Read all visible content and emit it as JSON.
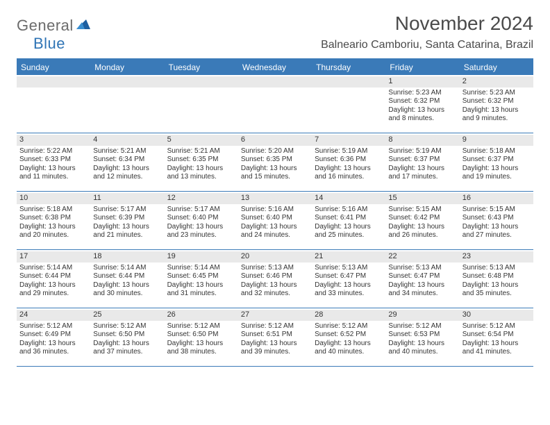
{
  "logo": {
    "text1": "General",
    "text2": "Blue"
  },
  "title": "November 2024",
  "location": "Balneario Camboriu, Santa Catarina, Brazil",
  "colors": {
    "header_bg": "#3a7ab8",
    "header_text": "#ffffff",
    "daynum_bg": "#e9e9e9",
    "text": "#333333",
    "logo_gray": "#6b6b6b",
    "logo_blue": "#2f74b5"
  },
  "weekdays": [
    "Sunday",
    "Monday",
    "Tuesday",
    "Wednesday",
    "Thursday",
    "Friday",
    "Saturday"
  ],
  "leading_blanks": 5,
  "days": [
    {
      "n": "1",
      "sunrise": "Sunrise: 5:23 AM",
      "sunset": "Sunset: 6:32 PM",
      "daylight": "Daylight: 13 hours and 8 minutes."
    },
    {
      "n": "2",
      "sunrise": "Sunrise: 5:23 AM",
      "sunset": "Sunset: 6:32 PM",
      "daylight": "Daylight: 13 hours and 9 minutes."
    },
    {
      "n": "3",
      "sunrise": "Sunrise: 5:22 AM",
      "sunset": "Sunset: 6:33 PM",
      "daylight": "Daylight: 13 hours and 11 minutes."
    },
    {
      "n": "4",
      "sunrise": "Sunrise: 5:21 AM",
      "sunset": "Sunset: 6:34 PM",
      "daylight": "Daylight: 13 hours and 12 minutes."
    },
    {
      "n": "5",
      "sunrise": "Sunrise: 5:21 AM",
      "sunset": "Sunset: 6:35 PM",
      "daylight": "Daylight: 13 hours and 13 minutes."
    },
    {
      "n": "6",
      "sunrise": "Sunrise: 5:20 AM",
      "sunset": "Sunset: 6:35 PM",
      "daylight": "Daylight: 13 hours and 15 minutes."
    },
    {
      "n": "7",
      "sunrise": "Sunrise: 5:19 AM",
      "sunset": "Sunset: 6:36 PM",
      "daylight": "Daylight: 13 hours and 16 minutes."
    },
    {
      "n": "8",
      "sunrise": "Sunrise: 5:19 AM",
      "sunset": "Sunset: 6:37 PM",
      "daylight": "Daylight: 13 hours and 17 minutes."
    },
    {
      "n": "9",
      "sunrise": "Sunrise: 5:18 AM",
      "sunset": "Sunset: 6:37 PM",
      "daylight": "Daylight: 13 hours and 19 minutes."
    },
    {
      "n": "10",
      "sunrise": "Sunrise: 5:18 AM",
      "sunset": "Sunset: 6:38 PM",
      "daylight": "Daylight: 13 hours and 20 minutes."
    },
    {
      "n": "11",
      "sunrise": "Sunrise: 5:17 AM",
      "sunset": "Sunset: 6:39 PM",
      "daylight": "Daylight: 13 hours and 21 minutes."
    },
    {
      "n": "12",
      "sunrise": "Sunrise: 5:17 AM",
      "sunset": "Sunset: 6:40 PM",
      "daylight": "Daylight: 13 hours and 23 minutes."
    },
    {
      "n": "13",
      "sunrise": "Sunrise: 5:16 AM",
      "sunset": "Sunset: 6:40 PM",
      "daylight": "Daylight: 13 hours and 24 minutes."
    },
    {
      "n": "14",
      "sunrise": "Sunrise: 5:16 AM",
      "sunset": "Sunset: 6:41 PM",
      "daylight": "Daylight: 13 hours and 25 minutes."
    },
    {
      "n": "15",
      "sunrise": "Sunrise: 5:15 AM",
      "sunset": "Sunset: 6:42 PM",
      "daylight": "Daylight: 13 hours and 26 minutes."
    },
    {
      "n": "16",
      "sunrise": "Sunrise: 5:15 AM",
      "sunset": "Sunset: 6:43 PM",
      "daylight": "Daylight: 13 hours and 27 minutes."
    },
    {
      "n": "17",
      "sunrise": "Sunrise: 5:14 AM",
      "sunset": "Sunset: 6:44 PM",
      "daylight": "Daylight: 13 hours and 29 minutes."
    },
    {
      "n": "18",
      "sunrise": "Sunrise: 5:14 AM",
      "sunset": "Sunset: 6:44 PM",
      "daylight": "Daylight: 13 hours and 30 minutes."
    },
    {
      "n": "19",
      "sunrise": "Sunrise: 5:14 AM",
      "sunset": "Sunset: 6:45 PM",
      "daylight": "Daylight: 13 hours and 31 minutes."
    },
    {
      "n": "20",
      "sunrise": "Sunrise: 5:13 AM",
      "sunset": "Sunset: 6:46 PM",
      "daylight": "Daylight: 13 hours and 32 minutes."
    },
    {
      "n": "21",
      "sunrise": "Sunrise: 5:13 AM",
      "sunset": "Sunset: 6:47 PM",
      "daylight": "Daylight: 13 hours and 33 minutes."
    },
    {
      "n": "22",
      "sunrise": "Sunrise: 5:13 AM",
      "sunset": "Sunset: 6:47 PM",
      "daylight": "Daylight: 13 hours and 34 minutes."
    },
    {
      "n": "23",
      "sunrise": "Sunrise: 5:13 AM",
      "sunset": "Sunset: 6:48 PM",
      "daylight": "Daylight: 13 hours and 35 minutes."
    },
    {
      "n": "24",
      "sunrise": "Sunrise: 5:12 AM",
      "sunset": "Sunset: 6:49 PM",
      "daylight": "Daylight: 13 hours and 36 minutes."
    },
    {
      "n": "25",
      "sunrise": "Sunrise: 5:12 AM",
      "sunset": "Sunset: 6:50 PM",
      "daylight": "Daylight: 13 hours and 37 minutes."
    },
    {
      "n": "26",
      "sunrise": "Sunrise: 5:12 AM",
      "sunset": "Sunset: 6:50 PM",
      "daylight": "Daylight: 13 hours and 38 minutes."
    },
    {
      "n": "27",
      "sunrise": "Sunrise: 5:12 AM",
      "sunset": "Sunset: 6:51 PM",
      "daylight": "Daylight: 13 hours and 39 minutes."
    },
    {
      "n": "28",
      "sunrise": "Sunrise: 5:12 AM",
      "sunset": "Sunset: 6:52 PM",
      "daylight": "Daylight: 13 hours and 40 minutes."
    },
    {
      "n": "29",
      "sunrise": "Sunrise: 5:12 AM",
      "sunset": "Sunset: 6:53 PM",
      "daylight": "Daylight: 13 hours and 40 minutes."
    },
    {
      "n": "30",
      "sunrise": "Sunrise: 5:12 AM",
      "sunset": "Sunset: 6:54 PM",
      "daylight": "Daylight: 13 hours and 41 minutes."
    }
  ]
}
